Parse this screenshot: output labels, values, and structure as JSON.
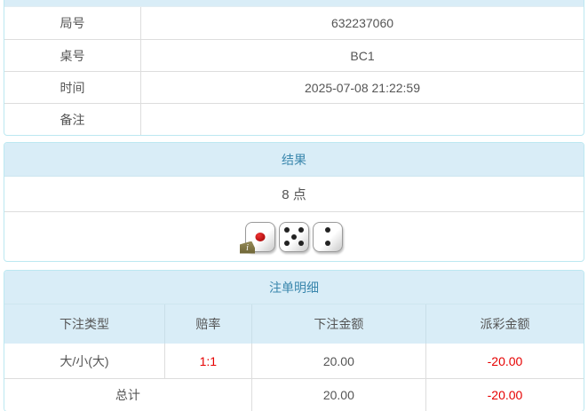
{
  "colors": {
    "header_bg": "#d9edf7",
    "header_text": "#3a87ad",
    "panel_border": "#bce8f1",
    "row_divider": "#dddddd",
    "body_text": "#555555",
    "negative_text": "#e60000",
    "red_pip": "#bb0000",
    "info_badge_bg": "#847a47"
  },
  "info_table": {
    "rows": [
      {
        "label": "局号",
        "value": "632237060"
      },
      {
        "label": "桌号",
        "value": "BC1"
      },
      {
        "label": "时间",
        "value": "2025-07-08 21:22:59"
      },
      {
        "label": "备注",
        "value": ""
      }
    ]
  },
  "result_panel": {
    "title": "结果",
    "points": "8 点",
    "dice": [
      {
        "value": 1,
        "pip_color": "red",
        "badge": "i"
      },
      {
        "value": 5,
        "pip_color": "black"
      },
      {
        "value": 2,
        "pip_color": "black"
      }
    ]
  },
  "bet_panel": {
    "title": "注单明细",
    "columns": [
      "下注类型",
      "赔率",
      "下注金额",
      "派彩金额"
    ],
    "rows": [
      {
        "bet_type": "大/小(大)",
        "odds": "1:1",
        "bet_amount": "20.00",
        "payout": "-20.00"
      }
    ],
    "total": {
      "label": "总计",
      "bet_amount": "20.00",
      "payout": "-20.00"
    }
  }
}
